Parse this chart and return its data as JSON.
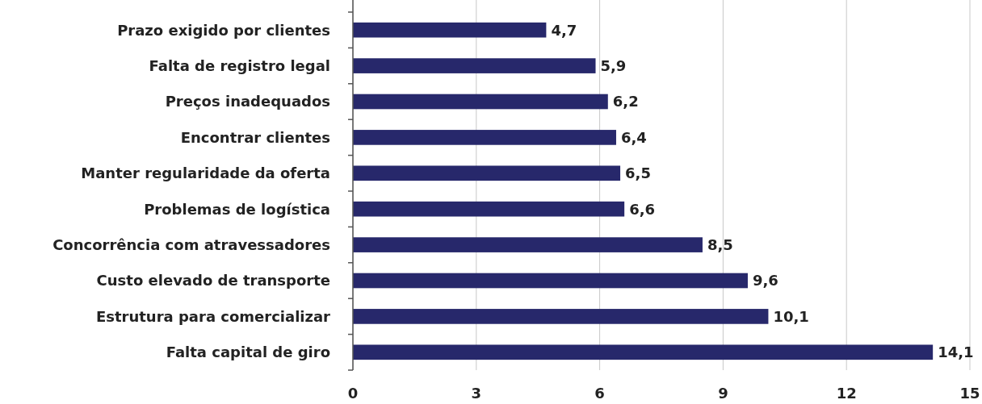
{
  "chart_data": {
    "type": "bar",
    "orientation": "horizontal",
    "categories": [
      "Prazo exigido por clientes",
      "Falta de registro legal",
      "Preços inadequados",
      "Encontrar clientes",
      "Manter regularidade da oferta",
      "Problemas de logística",
      "Concorrência com atravessadores",
      "Custo elevado de transporte",
      "Estrutura para comercializar",
      "Falta capital de giro"
    ],
    "values": [
      4.7,
      5.9,
      6.2,
      6.4,
      6.5,
      6.6,
      8.5,
      9.6,
      10.1,
      14.1
    ],
    "value_labels": [
      "4,7",
      "5,9",
      "6,2",
      "6,4",
      "6,5",
      "6,6",
      "8,5",
      "9,6",
      "10,1",
      "14,1"
    ],
    "color": "#27286b",
    "xlim": [
      0,
      15
    ],
    "xticks": [
      0,
      3,
      6,
      9,
      12,
      15
    ],
    "grid": "x"
  }
}
